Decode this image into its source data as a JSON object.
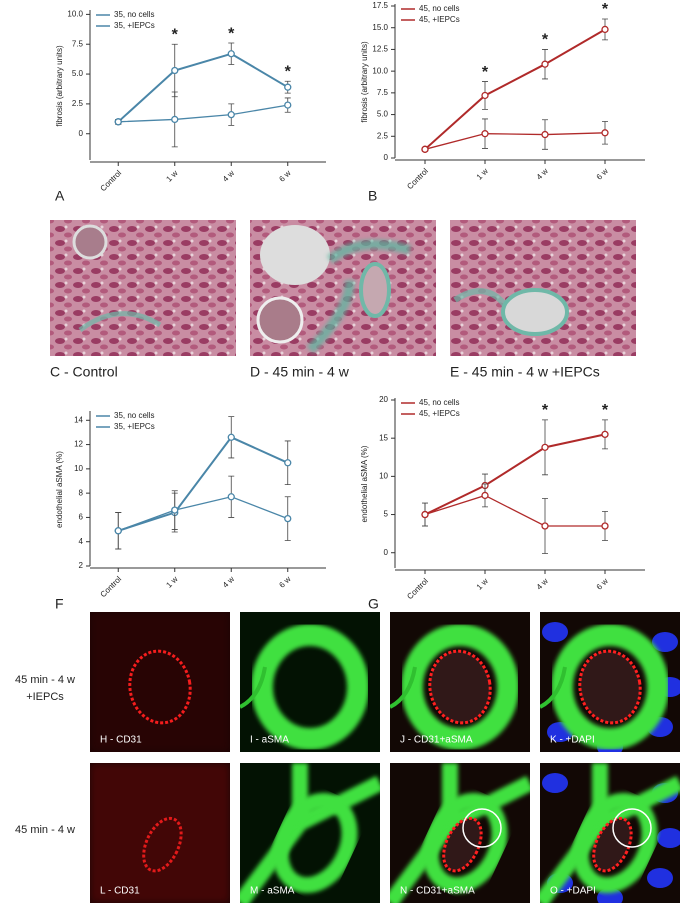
{
  "chart_data": [
    {
      "type": "line",
      "panel": "A",
      "y_label": "fibrosis (arbitrary units)",
      "categories": [
        "Control",
        "1 w",
        "4 w",
        "6 w"
      ],
      "series": [
        {
          "name": "35, no cells",
          "color": "#4a86a8",
          "values": [
            1.0,
            5.3,
            6.7,
            3.9
          ],
          "errors": [
            0.2,
            2.2,
            0.9,
            0.5
          ]
        },
        {
          "name": "35, +IEPCs",
          "color": "#4a86a8",
          "values": [
            1.0,
            1.2,
            1.6,
            2.4
          ],
          "errors": [
            0.2,
            2.3,
            0.9,
            0.6
          ]
        }
      ],
      "markers": [
        null,
        "*",
        "*",
        "*"
      ],
      "ylim": [
        -2.2,
        10.2
      ],
      "yticks": [
        0,
        2.5,
        {
          "value": 5,
          "label": "5.0"
        },
        7.5,
        {
          "value": 10,
          "label": "10.0"
        }
      ]
    },
    {
      "type": "line",
      "panel": "B",
      "y_label": "fibrosis (arbitrary units)",
      "categories": [
        "Control",
        "1 w",
        "4 w",
        "6 w"
      ],
      "series": [
        {
          "name": "45, no cells",
          "color": "#b02a2a",
          "values": [
            1.0,
            7.2,
            10.8,
            14.8
          ],
          "errors": [
            0.2,
            1.6,
            1.7,
            1.2
          ]
        },
        {
          "name": "45, +IEPCs",
          "color": "#b02a2a",
          "values": [
            1.0,
            2.8,
            2.7,
            2.9
          ],
          "errors": [
            0.2,
            1.7,
            1.7,
            1.3
          ]
        }
      ],
      "markers": [
        null,
        "*",
        "*",
        "*"
      ],
      "ylim": [
        0,
        17.5
      ],
      "yticks": [
        0,
        2.5,
        {
          "value": 5,
          "label": "5.0"
        },
        7.5,
        {
          "value": 10,
          "label": "10.0"
        },
        12.5,
        {
          "value": 15,
          "label": "15.0"
        },
        17.5
      ]
    },
    {
      "type": "line",
      "panel": "F",
      "y_label": "endothelial aSMA (%)",
      "categories": [
        "Control",
        "1 w",
        "4 w",
        "6 w"
      ],
      "series": [
        {
          "name": "35, no cells",
          "color": "#4a86a8",
          "values": [
            4.9,
            6.4,
            12.6,
            10.5
          ],
          "errors": [
            1.5,
            1.6,
            1.7,
            1.8
          ]
        },
        {
          "name": "35, +IEPCs",
          "color": "#4a86a8",
          "values": [
            4.9,
            6.6,
            7.7,
            5.9
          ],
          "errors": [
            1.5,
            1.6,
            1.7,
            1.8
          ]
        }
      ],
      "markers": [
        null,
        null,
        null,
        null
      ],
      "ylim": [
        2,
        14.6
      ],
      "yticks": [
        2,
        4,
        6,
        8,
        10,
        12,
        14
      ]
    },
    {
      "type": "line",
      "panel": "G",
      "y_label": "endothelial aSMA (%)",
      "categories": [
        "Control",
        "1 w",
        "4 w",
        "6 w"
      ],
      "series": [
        {
          "name": "45, no cells",
          "color": "#b02a2a",
          "values": [
            5.0,
            8.8,
            13.8,
            15.5
          ],
          "errors": [
            1.5,
            1.5,
            3.6,
            1.9
          ]
        },
        {
          "name": "45, +IEPCs",
          "color": "#b02a2a",
          "values": [
            5.0,
            7.5,
            3.5,
            3.5
          ],
          "errors": [
            1.5,
            1.5,
            3.6,
            1.9
          ]
        }
      ],
      "markers": [
        null,
        null,
        "*",
        "*"
      ],
      "ylim": [
        -2,
        20
      ],
      "yticks": [
        0,
        5,
        10,
        15,
        20
      ]
    }
  ],
  "histology": [
    "C - Control",
    "D - 45 min - 4 w",
    "E - 45 min - 4 w +IEPCs"
  ],
  "microscopy": [
    {
      "label": [
        "45 min - 4 w",
        "+IEPCs"
      ],
      "panels": [
        "H - CD31",
        "I - aSMA",
        "J - CD31+aSMA",
        "K - +DAPI"
      ]
    },
    {
      "label": [
        "45 min - 4 w"
      ],
      "panels": [
        "L - CD31",
        "M - aSMA",
        "N - CD31+aSMA",
        "O - +DAPI"
      ]
    }
  ]
}
